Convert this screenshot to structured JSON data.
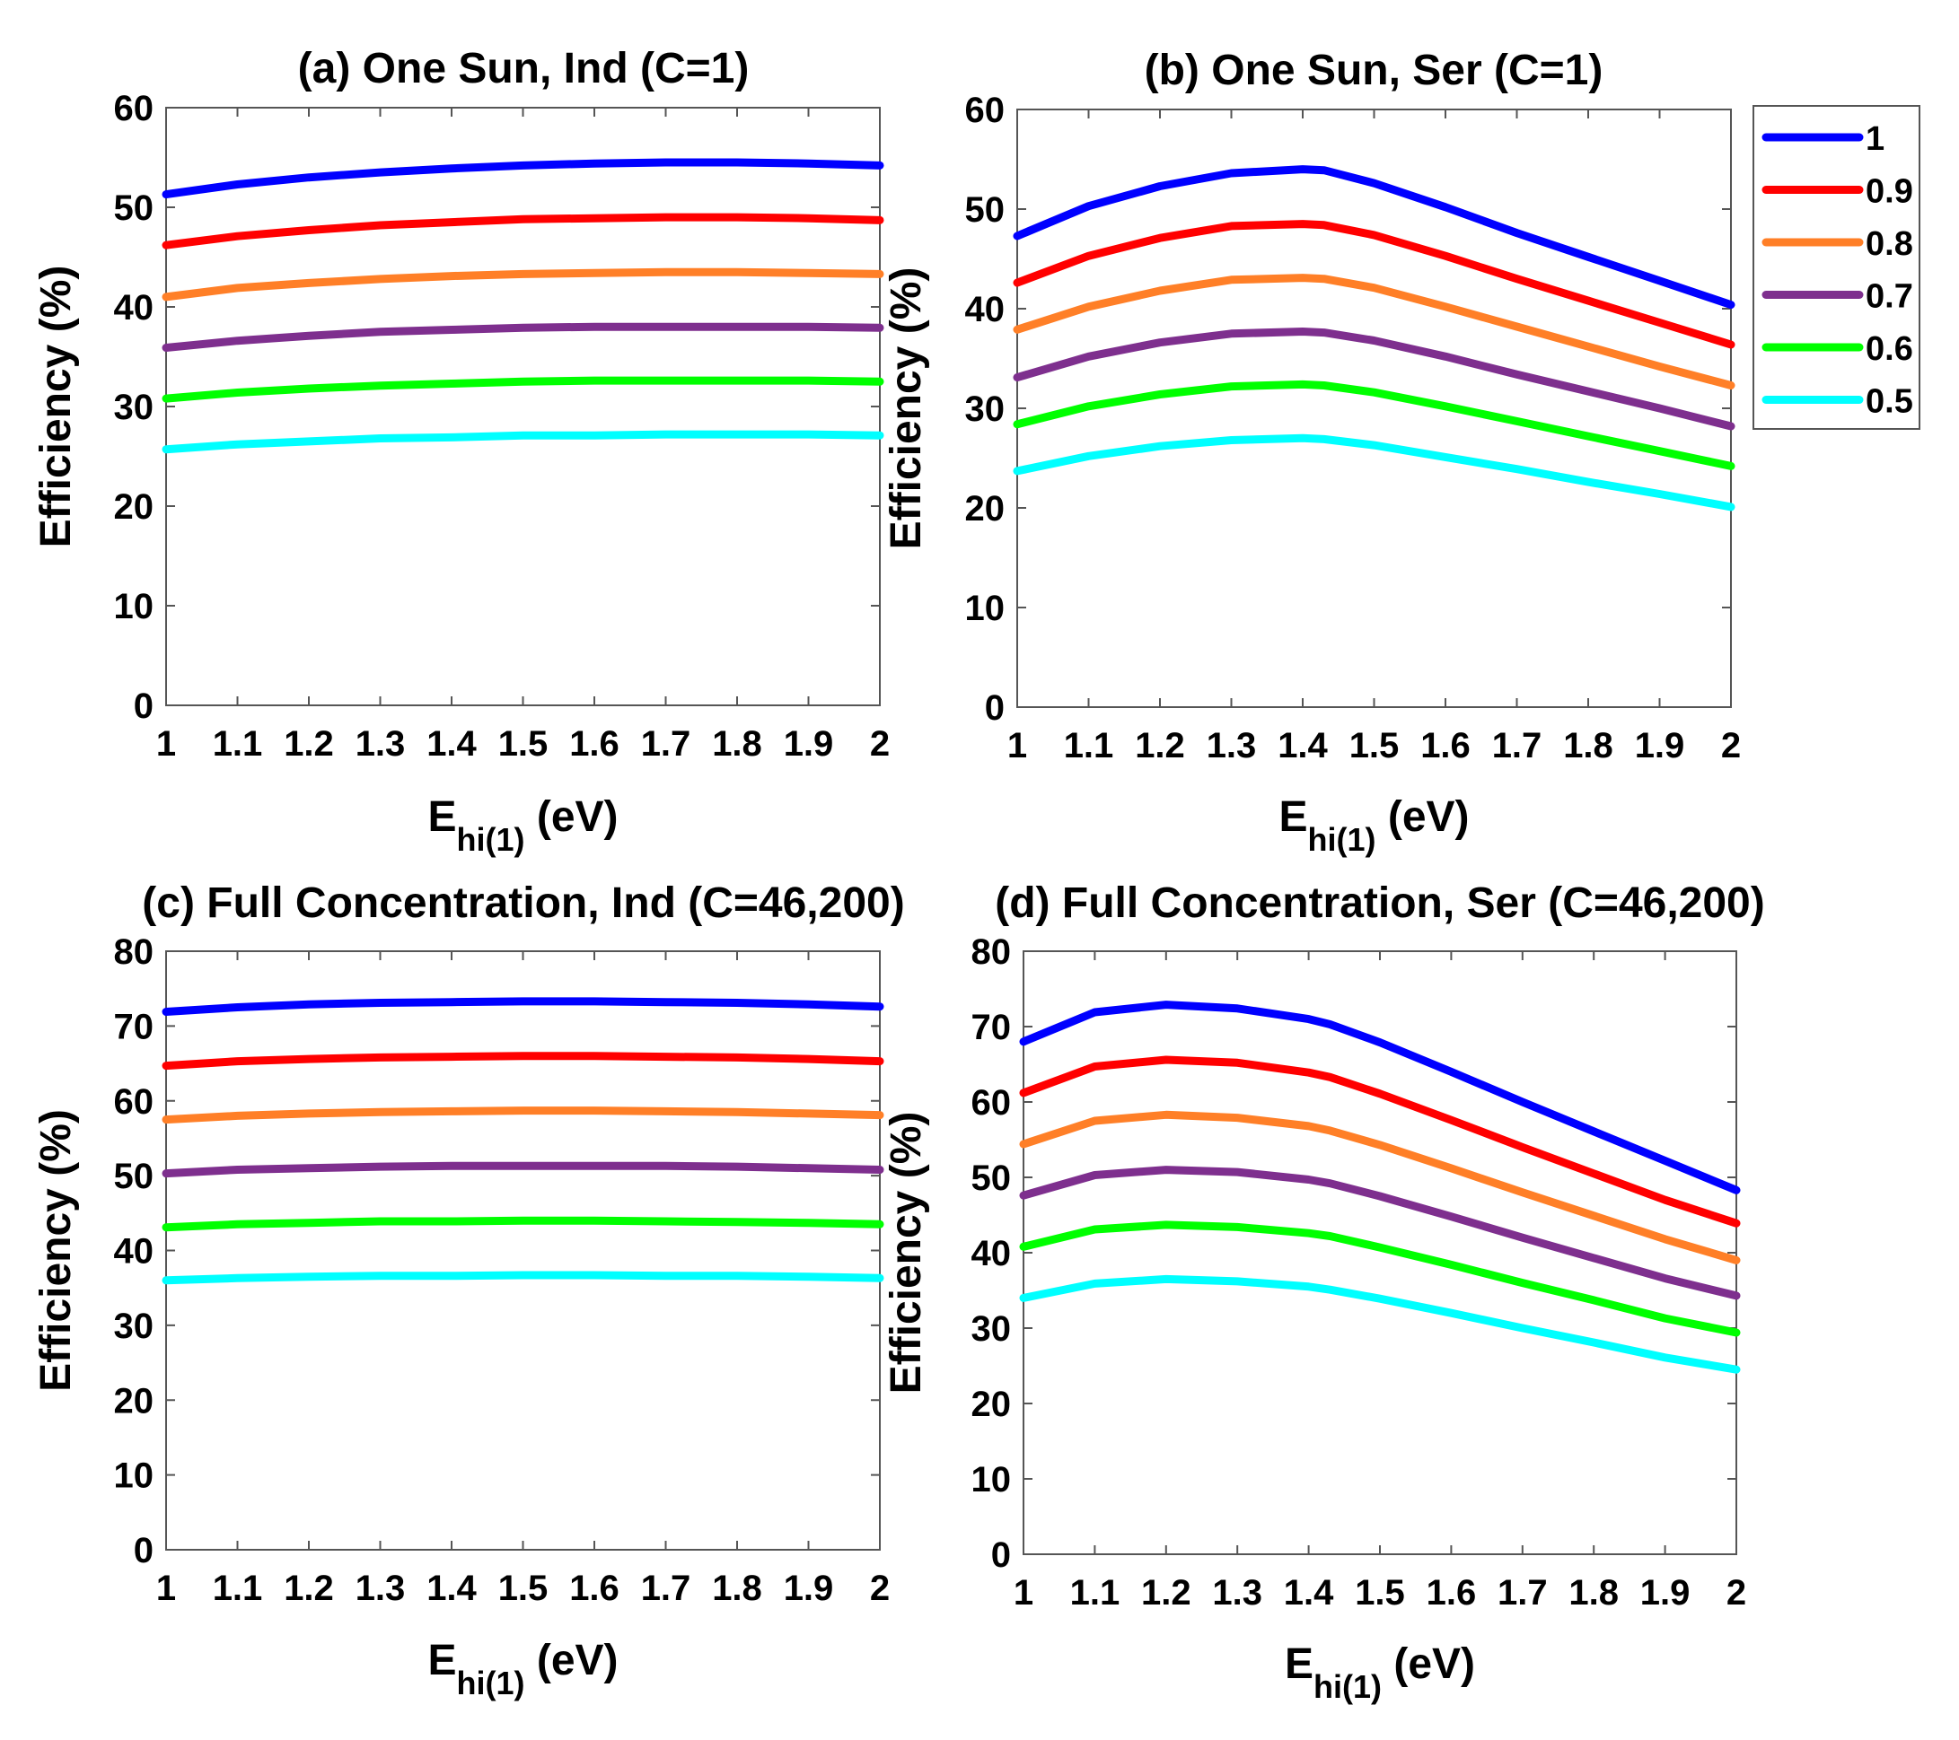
{
  "chart_data": [
    {
      "type": "line",
      "title": "(a) One Sun, Ind (C=1)",
      "xlabel": "E",
      "xlabel_sub": "hi(1)",
      "xlabel_unit": " (eV)",
      "ylabel": "Efficiency (%)",
      "xlim": [
        1,
        2
      ],
      "ylim": [
        0,
        60
      ],
      "xticks": [
        "1",
        "1.1",
        "1.2",
        "1.3",
        "1.4",
        "1.5",
        "1.6",
        "1.7",
        "1.8",
        "1.9",
        "2"
      ],
      "yticks": [
        "0",
        "10",
        "20",
        "30",
        "40",
        "50",
        "60"
      ],
      "grid": false,
      "x": [
        1,
        1.1,
        1.2,
        1.3,
        1.4,
        1.5,
        1.6,
        1.7,
        1.8,
        1.9,
        2
      ],
      "series": [
        {
          "name": "1",
          "color": "#0000ff",
          "values": [
            51.3,
            52.3,
            53.0,
            53.5,
            53.9,
            54.2,
            54.4,
            54.5,
            54.5,
            54.4,
            54.2
          ]
        },
        {
          "name": "0.9",
          "color": "#ff0000",
          "values": [
            46.2,
            47.1,
            47.7,
            48.2,
            48.5,
            48.8,
            48.9,
            49.0,
            49.0,
            48.9,
            48.7
          ]
        },
        {
          "name": "0.8",
          "color": "#ff7f27",
          "values": [
            41.0,
            41.9,
            42.4,
            42.8,
            43.1,
            43.3,
            43.4,
            43.5,
            43.5,
            43.4,
            43.3
          ]
        },
        {
          "name": "0.7",
          "color": "#7e2f8e",
          "values": [
            35.9,
            36.6,
            37.1,
            37.5,
            37.7,
            37.9,
            38.0,
            38.0,
            38.0,
            38.0,
            37.9
          ]
        },
        {
          "name": "0.6",
          "color": "#00ff00",
          "values": [
            30.8,
            31.4,
            31.8,
            32.1,
            32.3,
            32.5,
            32.6,
            32.6,
            32.6,
            32.6,
            32.5
          ]
        },
        {
          "name": "0.5",
          "color": "#00ffff",
          "values": [
            25.7,
            26.2,
            26.5,
            26.8,
            26.9,
            27.1,
            27.1,
            27.2,
            27.2,
            27.2,
            27.1
          ]
        }
      ]
    },
    {
      "type": "line",
      "title": "(b) One Sun, Ser (C=1)",
      "xlabel": "E",
      "xlabel_sub": "hi(1)",
      "xlabel_unit": " (eV)",
      "ylabel": "Efficiency (%)",
      "xlim": [
        1,
        2
      ],
      "ylim": [
        0,
        60
      ],
      "xticks": [
        "1",
        "1.1",
        "1.2",
        "1.3",
        "1.4",
        "1.5",
        "1.6",
        "1.7",
        "1.8",
        "1.9",
        "2"
      ],
      "yticks": [
        "0",
        "10",
        "20",
        "30",
        "40",
        "50",
        "60"
      ],
      "grid": false,
      "legend_position": "outside-right",
      "x": [
        1,
        1.1,
        1.2,
        1.3,
        1.4,
        1.43,
        1.5,
        1.6,
        1.7,
        1.8,
        1.9,
        2
      ],
      "series": [
        {
          "name": "1",
          "color": "#0000ff",
          "values": [
            47.3,
            50.3,
            52.3,
            53.6,
            54.0,
            53.9,
            52.6,
            50.2,
            47.6,
            45.2,
            42.8,
            40.4
          ]
        },
        {
          "name": "0.9",
          "color": "#ff0000",
          "values": [
            42.6,
            45.3,
            47.1,
            48.3,
            48.5,
            48.4,
            47.4,
            45.3,
            43.0,
            40.8,
            38.6,
            36.4
          ]
        },
        {
          "name": "0.8",
          "color": "#ff7f27",
          "values": [
            37.9,
            40.2,
            41.8,
            42.9,
            43.1,
            43.0,
            42.1,
            40.2,
            38.2,
            36.2,
            34.2,
            32.3
          ]
        },
        {
          "name": "0.7",
          "color": "#7e2f8e",
          "values": [
            33.1,
            35.2,
            36.6,
            37.5,
            37.7,
            37.6,
            36.8,
            35.2,
            33.4,
            31.7,
            30.0,
            28.2
          ]
        },
        {
          "name": "0.6",
          "color": "#00ff00",
          "values": [
            28.4,
            30.2,
            31.4,
            32.2,
            32.4,
            32.3,
            31.6,
            30.2,
            28.7,
            27.2,
            25.7,
            24.2
          ]
        },
        {
          "name": "0.5",
          "color": "#00ffff",
          "values": [
            23.7,
            25.2,
            26.2,
            26.8,
            27.0,
            26.9,
            26.3,
            25.1,
            23.9,
            22.6,
            21.4,
            20.1
          ]
        }
      ]
    },
    {
      "type": "line",
      "title": "(c) Full Concentration, Ind (C=46,200)",
      "xlabel": "E",
      "xlabel_sub": "hi(1)",
      "xlabel_unit": " (eV)",
      "ylabel": "Efficiency (%)",
      "xlim": [
        1,
        2
      ],
      "ylim": [
        0,
        80
      ],
      "xticks": [
        "1",
        "1.1",
        "1.2",
        "1.3",
        "1.4",
        "1.5",
        "1.6",
        "1.7",
        "1.8",
        "1.9",
        "2"
      ],
      "yticks": [
        "0",
        "10",
        "20",
        "30",
        "40",
        "50",
        "60",
        "70",
        "80"
      ],
      "grid": false,
      "x": [
        1,
        1.1,
        1.2,
        1.3,
        1.4,
        1.5,
        1.6,
        1.7,
        1.8,
        1.9,
        2
      ],
      "series": [
        {
          "name": "1",
          "color": "#0000ff",
          "values": [
            71.9,
            72.5,
            72.9,
            73.1,
            73.2,
            73.3,
            73.3,
            73.2,
            73.1,
            72.9,
            72.6
          ]
        },
        {
          "name": "0.9",
          "color": "#ff0000",
          "values": [
            64.7,
            65.3,
            65.6,
            65.8,
            65.9,
            66.0,
            66.0,
            65.9,
            65.8,
            65.6,
            65.3
          ]
        },
        {
          "name": "0.8",
          "color": "#ff7f27",
          "values": [
            57.5,
            58.0,
            58.3,
            58.5,
            58.6,
            58.7,
            58.7,
            58.6,
            58.5,
            58.3,
            58.1
          ]
        },
        {
          "name": "0.7",
          "color": "#7e2f8e",
          "values": [
            50.3,
            50.8,
            51.0,
            51.2,
            51.3,
            51.3,
            51.3,
            51.3,
            51.2,
            51.0,
            50.8
          ]
        },
        {
          "name": "0.6",
          "color": "#00ff00",
          "values": [
            43.1,
            43.5,
            43.7,
            43.9,
            43.9,
            44.0,
            44.0,
            43.9,
            43.8,
            43.7,
            43.5
          ]
        },
        {
          "name": "0.5",
          "color": "#00ffff",
          "values": [
            36.0,
            36.3,
            36.5,
            36.6,
            36.6,
            36.7,
            36.7,
            36.6,
            36.6,
            36.5,
            36.3
          ]
        }
      ]
    },
    {
      "type": "line",
      "title": "(d) Full Concentration, Ser (C=46,200)",
      "xlabel": "E",
      "xlabel_sub": "hi(1)",
      "xlabel_unit": " (eV)",
      "ylabel": "Efficiency (%)",
      "xlim": [
        1,
        2
      ],
      "ylim": [
        0,
        80
      ],
      "xticks": [
        "1",
        "1.1",
        "1.2",
        "1.3",
        "1.4",
        "1.5",
        "1.6",
        "1.7",
        "1.8",
        "1.9",
        "2"
      ],
      "yticks": [
        "0",
        "10",
        "20",
        "30",
        "40",
        "50",
        "60",
        "70",
        "80"
      ],
      "grid": false,
      "x": [
        1,
        1.1,
        1.2,
        1.3,
        1.4,
        1.43,
        1.5,
        1.6,
        1.7,
        1.8,
        1.9,
        2
      ],
      "series": [
        {
          "name": "1",
          "color": "#0000ff",
          "values": [
            68.0,
            71.9,
            72.9,
            72.4,
            71.0,
            70.3,
            67.9,
            64.0,
            60.0,
            56.1,
            52.2,
            48.3
          ]
        },
        {
          "name": "0.9",
          "color": "#ff0000",
          "values": [
            61.2,
            64.7,
            65.6,
            65.2,
            63.9,
            63.3,
            61.1,
            57.6,
            54.0,
            50.5,
            47.0,
            43.9
          ]
        },
        {
          "name": "0.8",
          "color": "#ff7f27",
          "values": [
            54.4,
            57.5,
            58.3,
            57.9,
            56.8,
            56.2,
            54.3,
            51.2,
            48.0,
            44.9,
            41.8,
            39.0
          ]
        },
        {
          "name": "0.7",
          "color": "#7e2f8e",
          "values": [
            47.6,
            50.3,
            51.0,
            50.7,
            49.7,
            49.2,
            47.5,
            44.8,
            42.0,
            39.3,
            36.6,
            34.3
          ]
        },
        {
          "name": "0.6",
          "color": "#00ff00",
          "values": [
            40.8,
            43.1,
            43.7,
            43.4,
            42.6,
            42.2,
            40.7,
            38.4,
            36.0,
            33.7,
            31.3,
            29.4
          ]
        },
        {
          "name": "0.5",
          "color": "#00ffff",
          "values": [
            34.0,
            35.9,
            36.5,
            36.2,
            35.5,
            35.1,
            33.9,
            32.0,
            30.0,
            28.1,
            26.1,
            24.5
          ]
        }
      ]
    }
  ]
}
